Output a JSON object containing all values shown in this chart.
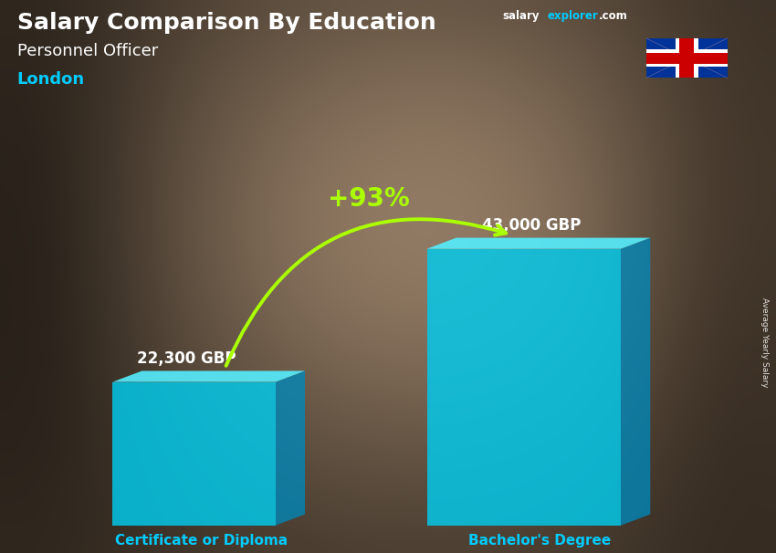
{
  "title_main": "Salary Comparison By Education",
  "title_sub": "Personnel Officer",
  "title_location": "London",
  "categories": [
    "Certificate or Diploma",
    "Bachelor's Degree"
  ],
  "values": [
    22300,
    43000
  ],
  "value_labels": [
    "22,300 GBP",
    "43,000 GBP"
  ],
  "pct_change": "+93%",
  "bar_color_front": "#00CCEE",
  "bar_color_light": "#44DDFF",
  "bar_color_side": "#0088BB",
  "bar_color_top": "#55EEFF",
  "arrow_color": "#AAFF00",
  "title_color": "#FFFFFF",
  "sub_color": "#FFFFFF",
  "loc_color": "#00CCFF",
  "value_label_color": "#FFFFFF",
  "category_label_color": "#00CCFF",
  "ylabel_text": "Average Yearly Salary",
  "website_salary_color": "#FFFFFF",
  "website_explorer_color": "#00CCFF",
  "bg_colors": [
    "#3a3025",
    "#5a4a35",
    "#6a5a45",
    "#4a3a2a"
  ],
  "figsize": [
    8.5,
    6.06
  ],
  "dpi": 100
}
